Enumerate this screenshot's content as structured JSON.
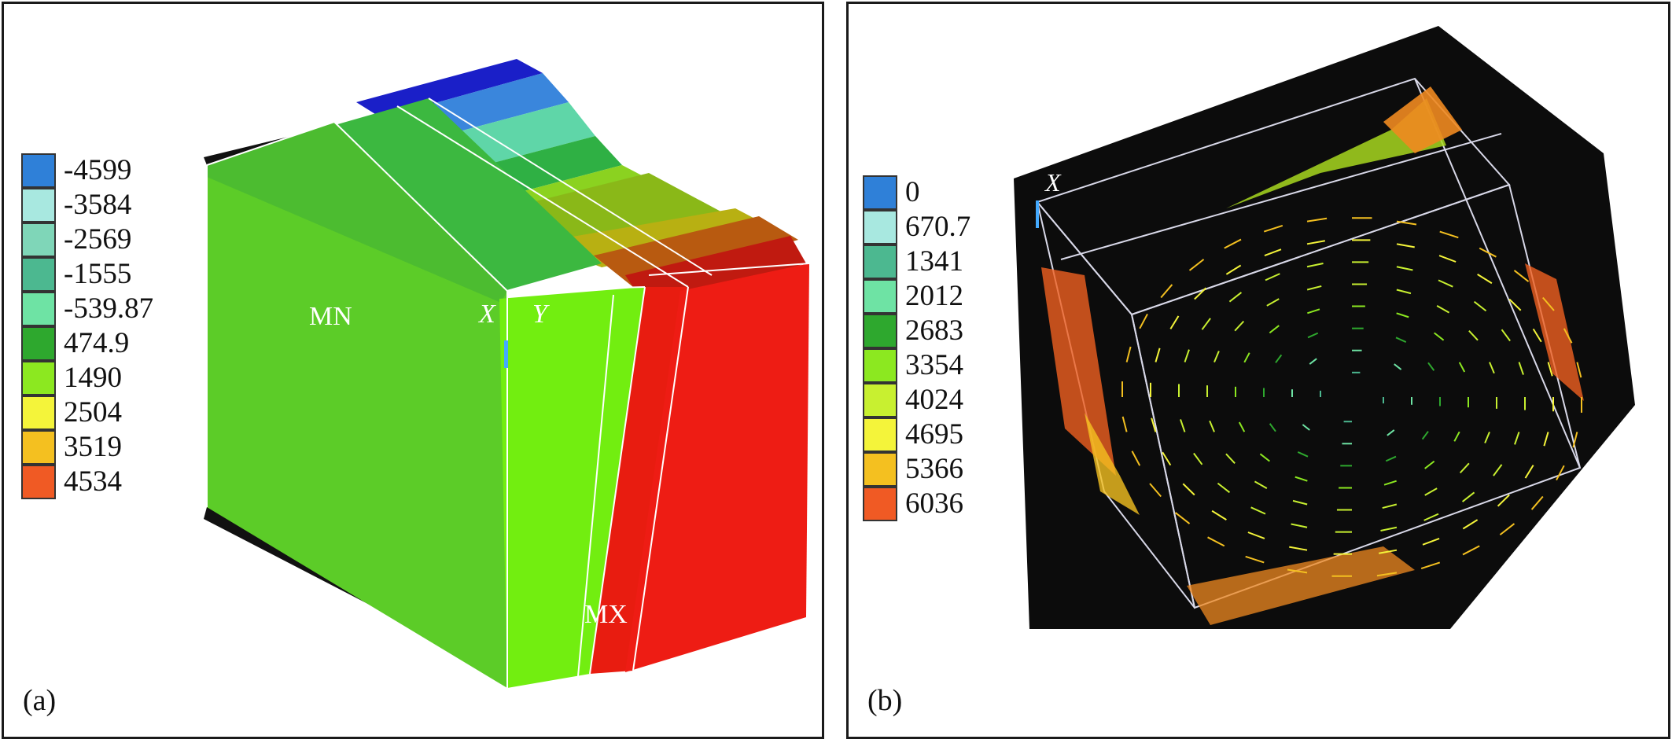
{
  "panel_a": {
    "label": "(a)",
    "legend": [
      {
        "text": "-4599",
        "color": "#2f80d8"
      },
      {
        "text": "-3584",
        "color": "#a8e8e0"
      },
      {
        "text": "-2569",
        "color": "#7fd6b8"
      },
      {
        "text": "-1555",
        "color": "#4cb890"
      },
      {
        "text": "-539.87",
        "color": "#6ee3a4"
      },
      {
        "text": "474.9",
        "color": "#2ea82e"
      },
      {
        "text": "1490",
        "color": "#8ce820"
      },
      {
        "text": "2504",
        "color": "#f4f43a"
      },
      {
        "text": "3519",
        "color": "#f4c020"
      },
      {
        "text": "4534",
        "color": "#f05a24"
      }
    ],
    "annotations": {
      "mn": "MN",
      "x": "X",
      "y": "Y",
      "mx": "MX"
    }
  },
  "panel_b": {
    "label": "(b)",
    "legend": [
      {
        "text": "0",
        "color": "#2f80d8"
      },
      {
        "text": "670.7",
        "color": "#a8e8e0"
      },
      {
        "text": "1341",
        "color": "#4cb890"
      },
      {
        "text": "2012",
        "color": "#6ee3a4"
      },
      {
        "text": "2683",
        "color": "#2ea82e"
      },
      {
        "text": "3354",
        "color": "#8ce820"
      },
      {
        "text": "4024",
        "color": "#c8f030"
      },
      {
        "text": "4695",
        "color": "#f4f43a"
      },
      {
        "text": "5366",
        "color": "#f4c020"
      },
      {
        "text": "6036",
        "color": "#f05a24"
      }
    ],
    "annotations": {
      "x": "X"
    }
  }
}
